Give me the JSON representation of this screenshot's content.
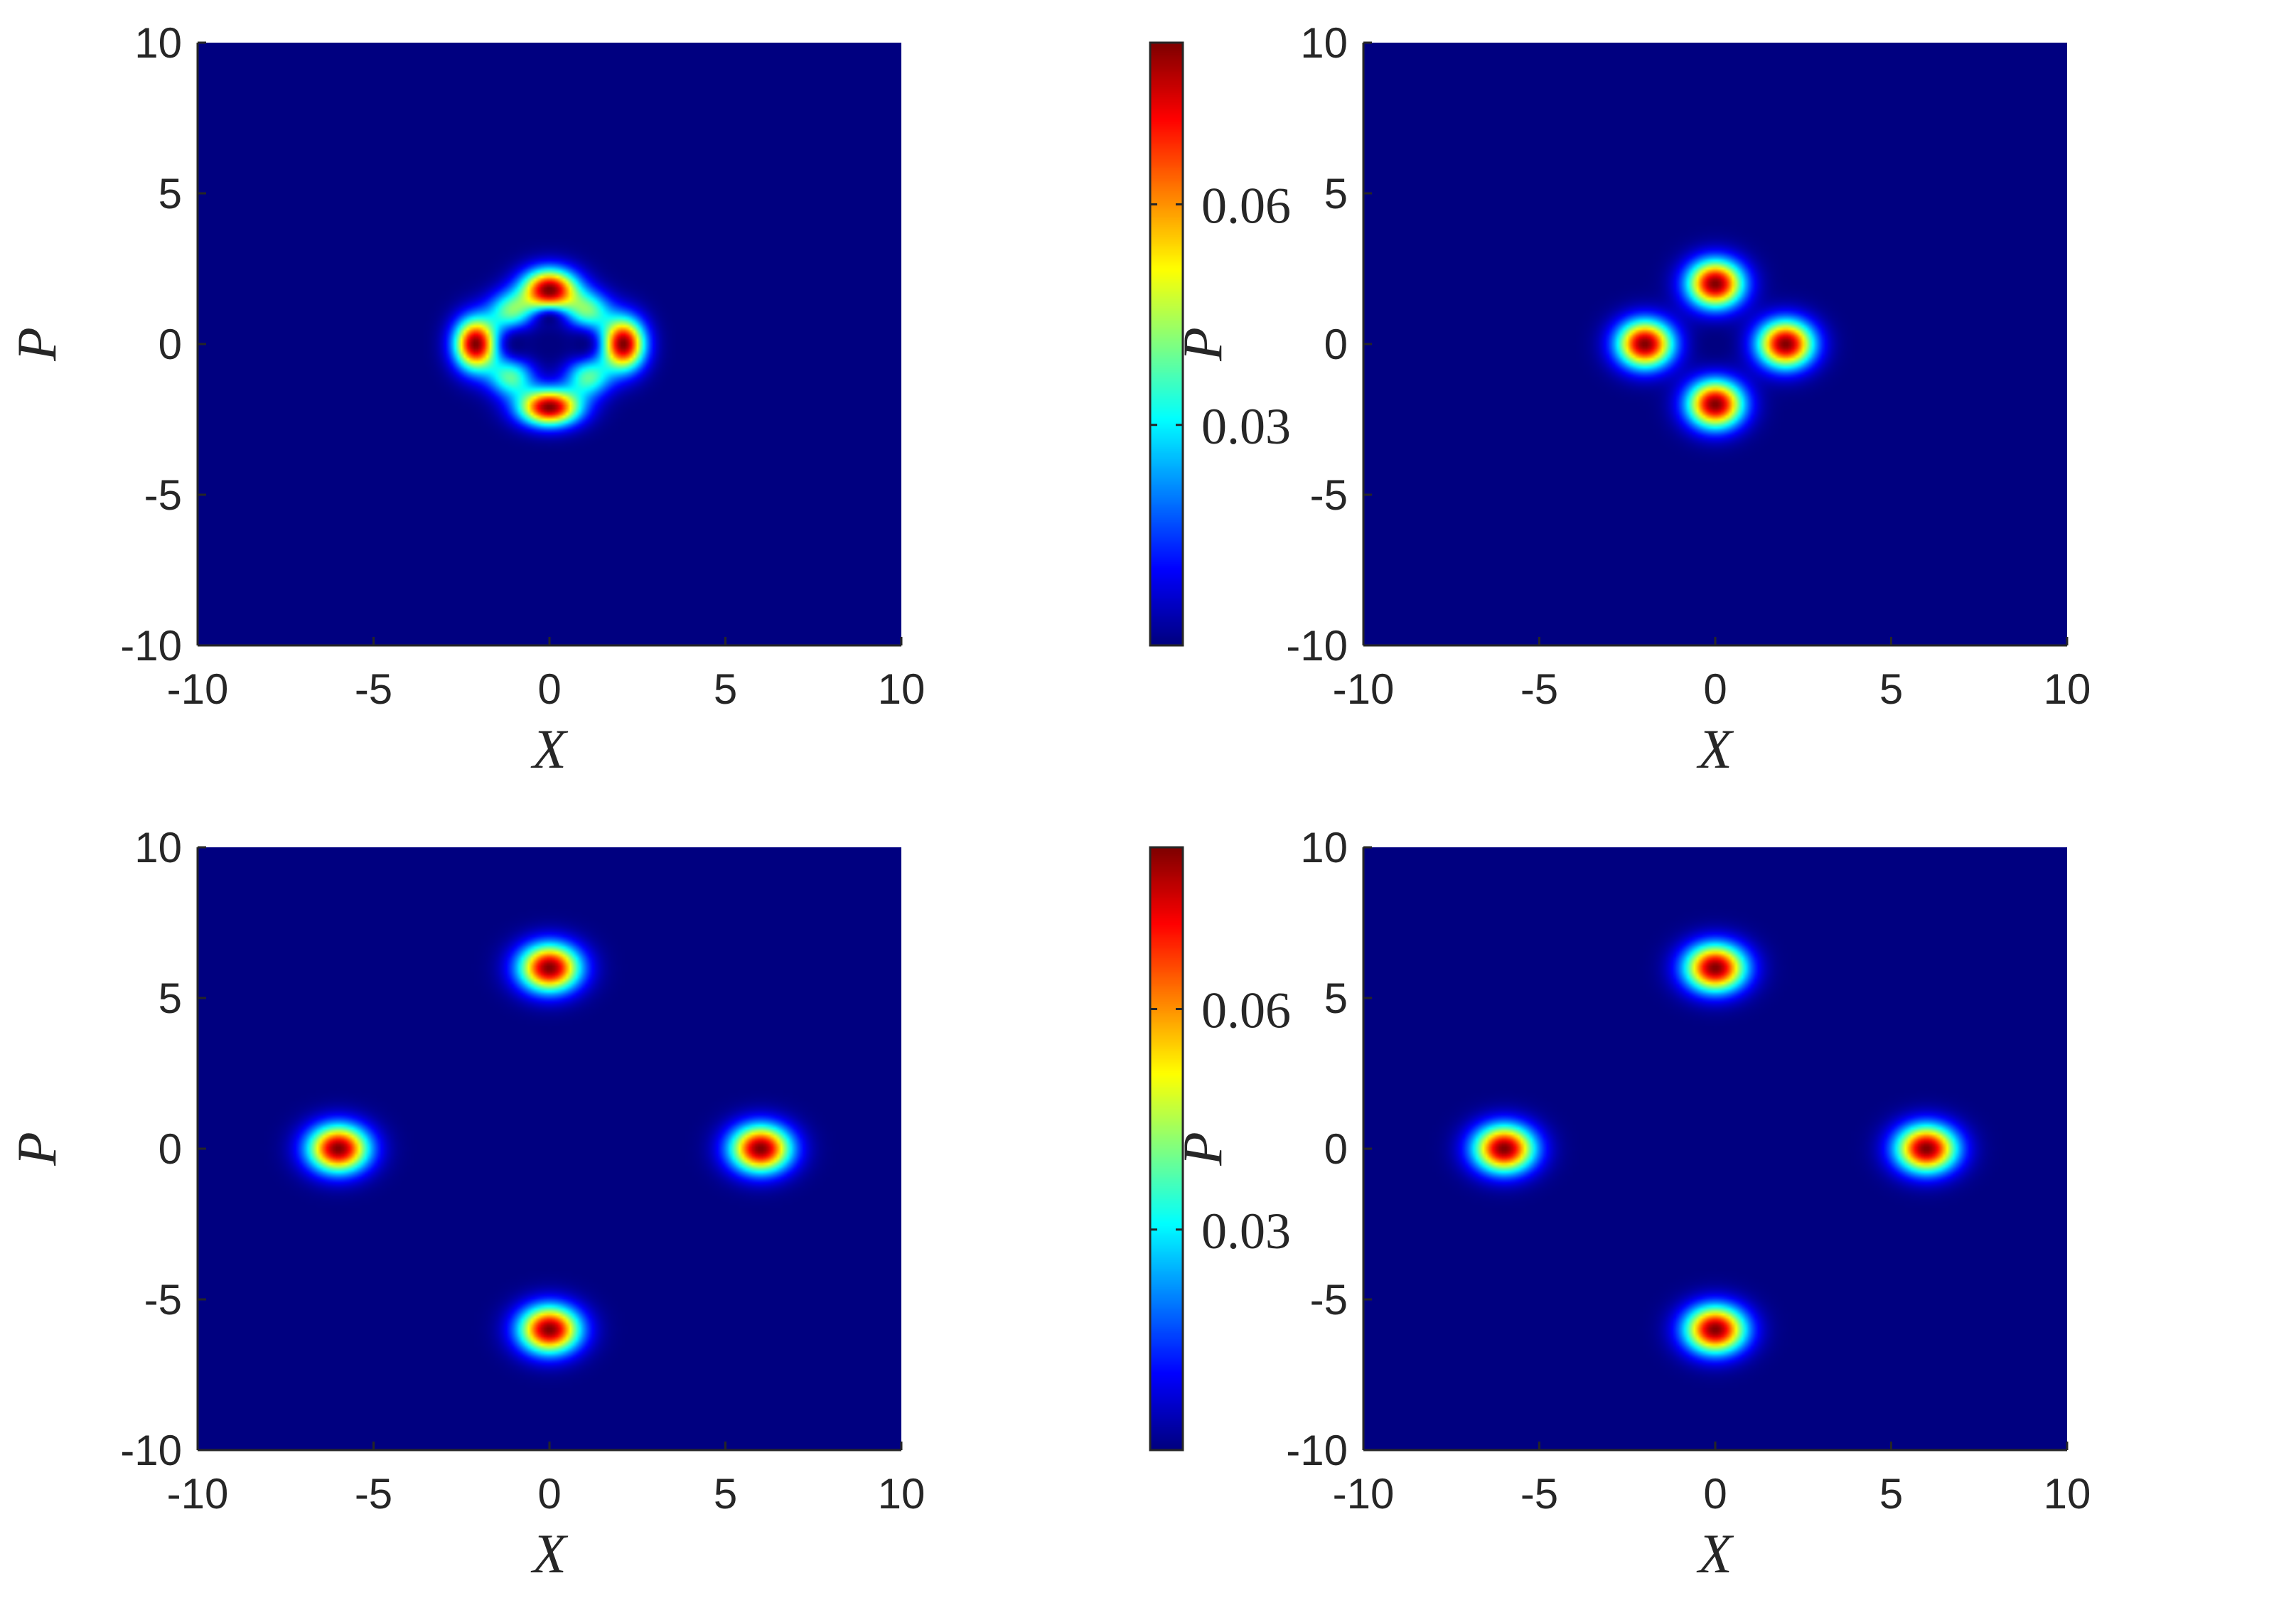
{
  "chart_data": [
    {
      "type": "heatmap",
      "xlabel": "X",
      "ylabel": "P",
      "xlim": [
        -10,
        10
      ],
      "ylim": [
        -10,
        10
      ],
      "xticks": [
        "-10",
        "-5",
        "0",
        "5",
        "10"
      ],
      "yticks": [
        "-10",
        "-5",
        "0",
        "5",
        "10"
      ],
      "colorbar": {
        "ticks": [
          "0.03",
          "0.06"
        ],
        "tick_values": [
          0.03,
          0.06
        ],
        "range": [
          0,
          0.082
        ]
      },
      "colormap": "jet",
      "peaks": [
        {
          "x": 0,
          "y": 1.8,
          "amp": 1.0,
          "sx": 0.55,
          "sy": 0.48
        },
        {
          "x": 0,
          "y": -2.1,
          "amp": 1.0,
          "sx": 0.6,
          "sy": 0.42
        },
        {
          "x": -2.1,
          "y": 0,
          "amp": 1.0,
          "sx": 0.42,
          "sy": 0.6
        },
        {
          "x": 2.1,
          "y": 0,
          "amp": 1.0,
          "sx": 0.42,
          "sy": 0.6
        },
        {
          "x": -1.1,
          "y": 1.1,
          "amp": 0.45,
          "sx": 0.45,
          "sy": 0.45
        },
        {
          "x": 1.1,
          "y": 1.1,
          "amp": 0.45,
          "sx": 0.45,
          "sy": 0.45
        },
        {
          "x": -1.1,
          "y": -1.1,
          "amp": 0.45,
          "sx": 0.45,
          "sy": 0.45
        },
        {
          "x": 1.1,
          "y": -1.1,
          "amp": 0.45,
          "sx": 0.45,
          "sy": 0.45
        }
      ],
      "holes": [
        {
          "x": 0,
          "y": 0,
          "sx": 0.35,
          "sy": 0.35
        },
        {
          "x": -0.9,
          "y": 0,
          "sx": 0.3,
          "sy": 0.3
        },
        {
          "x": 0.9,
          "y": 0,
          "sx": 0.3,
          "sy": 0.3
        },
        {
          "x": 0,
          "y": 0.8,
          "sx": 0.3,
          "sy": 0.25
        }
      ]
    },
    {
      "type": "heatmap",
      "xlabel": "X",
      "ylabel": "P",
      "xlim": [
        -10,
        10
      ],
      "ylim": [
        -10,
        10
      ],
      "xticks": [
        "-10",
        "-5",
        "0",
        "5",
        "10"
      ],
      "yticks": [
        "-10",
        "-5",
        "0",
        "5",
        "10"
      ],
      "colorbar": {
        "ticks": [
          "0.03",
          "0.06"
        ],
        "tick_values": [
          0.03,
          0.06
        ],
        "range": [
          0,
          0.082
        ]
      },
      "colormap": "jet",
      "peaks": [
        {
          "x": 0,
          "y": 2,
          "amp": 1.0,
          "sx": 0.55,
          "sy": 0.55
        },
        {
          "x": 0,
          "y": -2,
          "amp": 1.0,
          "sx": 0.55,
          "sy": 0.55
        },
        {
          "x": -2,
          "y": 0,
          "amp": 1.0,
          "sx": 0.55,
          "sy": 0.55
        },
        {
          "x": 2,
          "y": 0,
          "amp": 1.0,
          "sx": 0.55,
          "sy": 0.55
        }
      ],
      "holes": [
        {
          "x": 0,
          "y": 0,
          "sx": 0.3,
          "sy": 0.3
        }
      ]
    },
    {
      "type": "heatmap",
      "xlabel": "X",
      "ylabel": "P",
      "xlim": [
        -10,
        10
      ],
      "ylim": [
        -10,
        10
      ],
      "xticks": [
        "-10",
        "-5",
        "0",
        "5",
        "10"
      ],
      "yticks": [
        "-10",
        "-5",
        "0",
        "5",
        "10"
      ],
      "colorbar": {
        "ticks": [
          "0.03",
          "0.06"
        ],
        "tick_values": [
          0.03,
          0.06
        ],
        "range": [
          0,
          0.082
        ]
      },
      "colormap": "jet",
      "peaks": [
        {
          "x": 0,
          "y": 6,
          "amp": 1.0,
          "sx": 0.6,
          "sy": 0.55
        },
        {
          "x": 0,
          "y": -6,
          "amp": 1.0,
          "sx": 0.6,
          "sy": 0.55
        },
        {
          "x": -6,
          "y": 0,
          "amp": 1.0,
          "sx": 0.6,
          "sy": 0.55
        },
        {
          "x": 6,
          "y": 0,
          "amp": 1.0,
          "sx": 0.6,
          "sy": 0.55
        }
      ],
      "holes": []
    },
    {
      "type": "heatmap",
      "xlabel": "X",
      "ylabel": "P",
      "xlim": [
        -10,
        10
      ],
      "ylim": [
        -10,
        10
      ],
      "xticks": [
        "-10",
        "-5",
        "0",
        "5",
        "10"
      ],
      "yticks": [
        "-10",
        "-5",
        "0",
        "5",
        "10"
      ],
      "colorbar": {
        "ticks": [
          "0.03",
          "0.06"
        ],
        "tick_values": [
          0.03,
          0.06
        ],
        "range": [
          0,
          0.082
        ]
      },
      "colormap": "jet",
      "peaks": [
        {
          "x": 0,
          "y": 6,
          "amp": 1.0,
          "sx": 0.6,
          "sy": 0.55
        },
        {
          "x": 0,
          "y": -6,
          "amp": 1.0,
          "sx": 0.6,
          "sy": 0.55
        },
        {
          "x": -6,
          "y": 0,
          "amp": 1.0,
          "sx": 0.6,
          "sy": 0.55
        },
        {
          "x": 6,
          "y": 0,
          "amp": 1.0,
          "sx": 0.6,
          "sy": 0.55
        }
      ],
      "holes": []
    }
  ]
}
